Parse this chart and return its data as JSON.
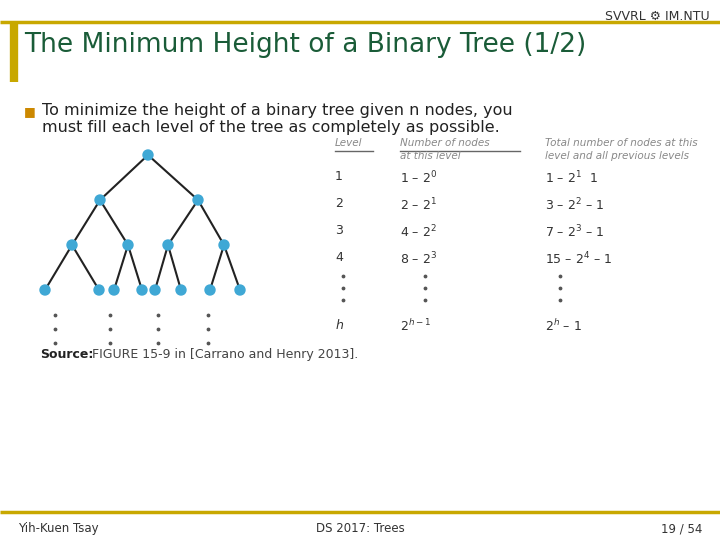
{
  "title": "The Minimum Height of a Binary Tree (1/2)",
  "header_right": "SVVRL ⚙ IM.NTU",
  "bg_color": "#ffffff",
  "header_line_color": "#c8a800",
  "title_color": "#1a5c38",
  "left_bar_color": "#c8a800",
  "bullet_text_line1": "To minimize the height of a binary tree given n nodes, you",
  "bullet_text_line2": "must fill each level of the tree as completely as possible.",
  "bullet_color": "#222222",
  "table_header_color": "#888888",
  "table_text_color": "#333333",
  "source_bold": "Source:",
  "source_rest": " FIGURE 15-9 in [Carrano and Henry 2013].",
  "footer_left": "Yih-Kuen Tsay",
  "footer_center": "DS 2017: Trees",
  "footer_right": "19 / 54",
  "footer_line_color": "#c8a800",
  "node_color": "#3fa8d5",
  "edge_color": "#222222"
}
